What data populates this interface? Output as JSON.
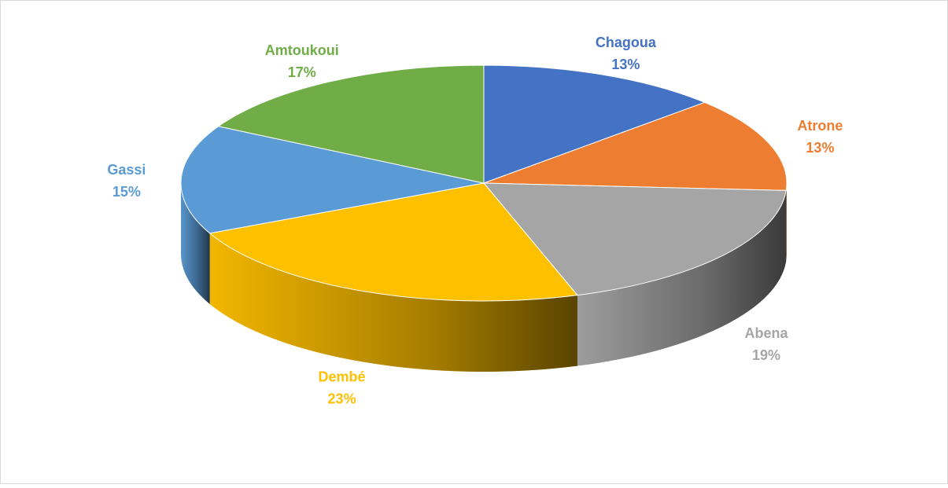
{
  "chart_data": {
    "type": "pie",
    "categories": [
      "Chagoua",
      "Atrone",
      "Abena",
      "Dembé",
      "Gassi",
      "Amtoukoui"
    ],
    "values": [
      13,
      13,
      19,
      23,
      15,
      17
    ],
    "value_labels": [
      "13%",
      "13%",
      "19%",
      "23%",
      "15%",
      "17%"
    ],
    "colors": [
      "#4472c4",
      "#ed7d31",
      "#a5a5a5",
      "#ffc000",
      "#5b9bd5",
      "#70ad47"
    ]
  }
}
